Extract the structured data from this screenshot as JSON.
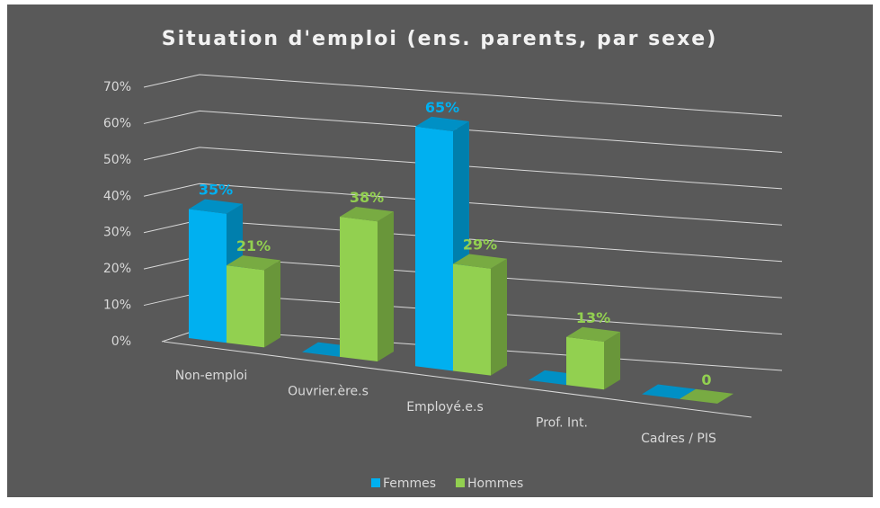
{
  "chart_data": {
    "type": "bar3d",
    "title": "Situation d'emploi (ens. parents, par sexe)",
    "categories": [
      "Non-emploi",
      "Ouvrier.ère.s",
      "Employé.e.s",
      "Prof. Int.",
      "Cadres / PIS"
    ],
    "series": [
      {
        "name": "Femmes",
        "color": "#00b0f0",
        "values": [
          35,
          0,
          65,
          0,
          0
        ],
        "value_labels": [
          "35%",
          null,
          "65%",
          null,
          null
        ]
      },
      {
        "name": "Hommes",
        "color": "#92d050",
        "values": [
          21,
          38,
          29,
          13,
          0
        ],
        "value_labels": [
          "21%",
          "38%",
          "29%",
          "13%",
          "0"
        ]
      }
    ],
    "ylim": [
      0,
      70
    ],
    "yticks": [
      {
        "value": 0,
        "label": "0%"
      },
      {
        "value": 10,
        "label": "10%"
      },
      {
        "value": 20,
        "label": "20%"
      },
      {
        "value": 30,
        "label": "30%"
      },
      {
        "value": 40,
        "label": "40%"
      },
      {
        "value": 50,
        "label": "50%"
      },
      {
        "value": 60,
        "label": "60%"
      },
      {
        "value": 70,
        "label": "70%"
      }
    ],
    "grid": true,
    "legend": "bottom"
  }
}
